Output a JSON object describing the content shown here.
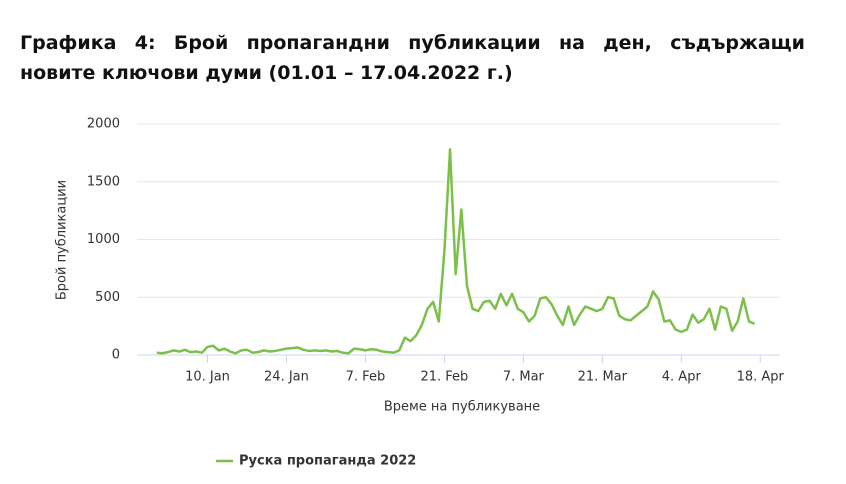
{
  "chart_data": {
    "type": "line",
    "title": "Графика 4: Брой пропагандни публикации на ден, съдържащи новите ключови думи (01.01 – 17.04.2022 г.)",
    "x_label": "Време на публикуване",
    "y_label": "Брой публикации",
    "x": [
      1,
      2,
      3,
      4,
      5,
      6,
      7,
      8,
      9,
      10,
      11,
      12,
      13,
      14,
      15,
      16,
      17,
      18,
      19,
      20,
      21,
      22,
      23,
      24,
      25,
      26,
      27,
      28,
      29,
      30,
      31,
      32,
      33,
      34,
      35,
      36,
      37,
      38,
      39,
      40,
      41,
      42,
      43,
      44,
      45,
      46,
      47,
      48,
      49,
      50,
      51,
      52,
      53,
      54,
      55,
      56,
      57,
      58,
      59,
      60,
      61,
      62,
      63,
      64,
      65,
      66,
      67,
      68,
      69,
      70,
      71,
      72,
      73,
      74,
      75,
      76,
      77,
      78,
      79,
      80,
      81,
      82,
      83,
      84,
      85,
      86,
      87,
      88,
      89,
      90,
      91,
      92,
      93,
      94,
      95,
      96,
      97,
      98,
      99,
      100,
      101,
      102,
      103,
      104,
      105,
      106,
      107
    ],
    "series": [
      {
        "name": "Руска пропаганда 2022",
        "color": "#7cc04b",
        "values": [
          20,
          15,
          25,
          40,
          30,
          45,
          25,
          30,
          20,
          70,
          80,
          40,
          55,
          30,
          15,
          40,
          45,
          20,
          25,
          40,
          30,
          35,
          45,
          55,
          60,
          65,
          45,
          35,
          40,
          35,
          40,
          30,
          35,
          20,
          15,
          55,
          50,
          40,
          50,
          45,
          30,
          25,
          20,
          40,
          150,
          120,
          170,
          260,
          400,
          460,
          290,
          900,
          1780,
          700,
          1260,
          600,
          400,
          380,
          460,
          470,
          400,
          530,
          430,
          530,
          400,
          370,
          290,
          340,
          490,
          500,
          440,
          340,
          260,
          420,
          260,
          350,
          420,
          400,
          380,
          400,
          500,
          490,
          340,
          310,
          300,
          340,
          380,
          420,
          550,
          480,
          290,
          300,
          220,
          200,
          220,
          350,
          280,
          310,
          400,
          220,
          420,
          400,
          210,
          290,
          490,
          290,
          270
        ]
      }
    ],
    "xlim": [
      -2.5,
      111.5
    ],
    "xticks": [
      {
        "value": 10,
        "label": "10. Jan"
      },
      {
        "value": 24,
        "label": "24. Jan"
      },
      {
        "value": 38,
        "label": "7. Feb"
      },
      {
        "value": 52,
        "label": "21. Feb"
      },
      {
        "value": 66,
        "label": "7. Mar"
      },
      {
        "value": 80,
        "label": "21. Mar"
      },
      {
        "value": 94,
        "label": "4. Apr"
      },
      {
        "value": 108,
        "label": "18. Apr"
      }
    ],
    "ylim": [
      0,
      2000
    ],
    "yticks": [
      0,
      500,
      1000,
      1500,
      2000
    ],
    "grid": true
  }
}
